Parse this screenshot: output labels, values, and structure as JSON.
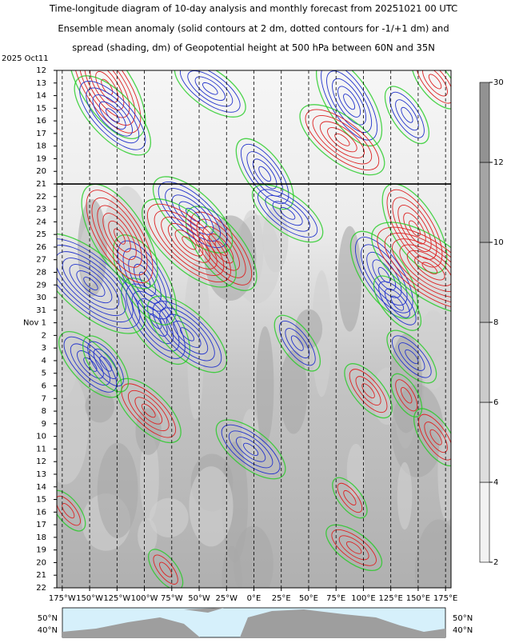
{
  "chart_data": {
    "type": "hovmoller",
    "title_lines": [
      "Time-longitude diagram of 10-day analysis and monthly forecast from 20251021 00 UTC",
      "Ensemble mean anomaly (solid contours at 2 dm, dotted contours for -1/+1 dm) and",
      "spread (shading, dm) of Geopotential height at 500 hPa between 60N and 35N"
    ],
    "y_header": "2025 Oct11",
    "y_categories": [
      "12",
      "13",
      "14",
      "15",
      "16",
      "17",
      "18",
      "19",
      "20",
      "21",
      "22",
      "23",
      "24",
      "25",
      "26",
      "27",
      "28",
      "29",
      "30",
      "31",
      "Nov 1",
      "2",
      "3",
      "4",
      "5",
      "6",
      "7",
      "8",
      "9",
      "10",
      "11",
      "12",
      "13",
      "14",
      "15",
      "16",
      "17",
      "18",
      "19",
      "20",
      "21",
      "22"
    ],
    "highlight_indices": [
      0,
      7,
      14,
      21,
      28,
      35
    ],
    "highlight_color": "#e00000",
    "analysis_boundary_index": 9,
    "xlim": [
      -180,
      180
    ],
    "xticks": [
      {
        "value": -175,
        "label": "175°W"
      },
      {
        "value": -150,
        "label": "150°W"
      },
      {
        "value": -125,
        "label": "125°W"
      },
      {
        "value": -100,
        "label": "100°W"
      },
      {
        "value": -75,
        "label": "75°W"
      },
      {
        "value": -50,
        "label": "50°W"
      },
      {
        "value": -25,
        "label": "25°W"
      },
      {
        "value": 0,
        "label": "0°E"
      },
      {
        "value": 25,
        "label": "25°E"
      },
      {
        "value": 50,
        "label": "50°E"
      },
      {
        "value": 75,
        "label": "75°E"
      },
      {
        "value": 100,
        "label": "100°E"
      },
      {
        "value": 125,
        "label": "125°E"
      },
      {
        "value": 150,
        "label": "150°E"
      },
      {
        "value": 175,
        "label": "175°E"
      }
    ],
    "colorbar": {
      "levels": [
        2,
        4,
        6,
        8,
        10,
        12,
        30
      ],
      "colors": [
        "#f2f2f2",
        "#dedede",
        "#cbcbcb",
        "#b8b8b8",
        "#a5a5a5",
        "#929292"
      ]
    },
    "map_labels": {
      "left": [
        "50°N",
        "40°N"
      ],
      "right": [
        "50°N",
        "40°N"
      ]
    }
  }
}
